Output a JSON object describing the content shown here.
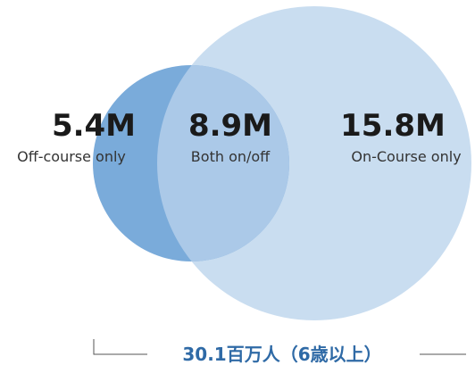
{
  "sets": [
    {
      "value": "5.4M",
      "label": "Off-course only"
    },
    {
      "value": "8.9M",
      "label": "Both on/off"
    },
    {
      "value": "15.8M",
      "label": "On-Course only"
    }
  ],
  "total": "30.1百万人（6歳以上）"
}
